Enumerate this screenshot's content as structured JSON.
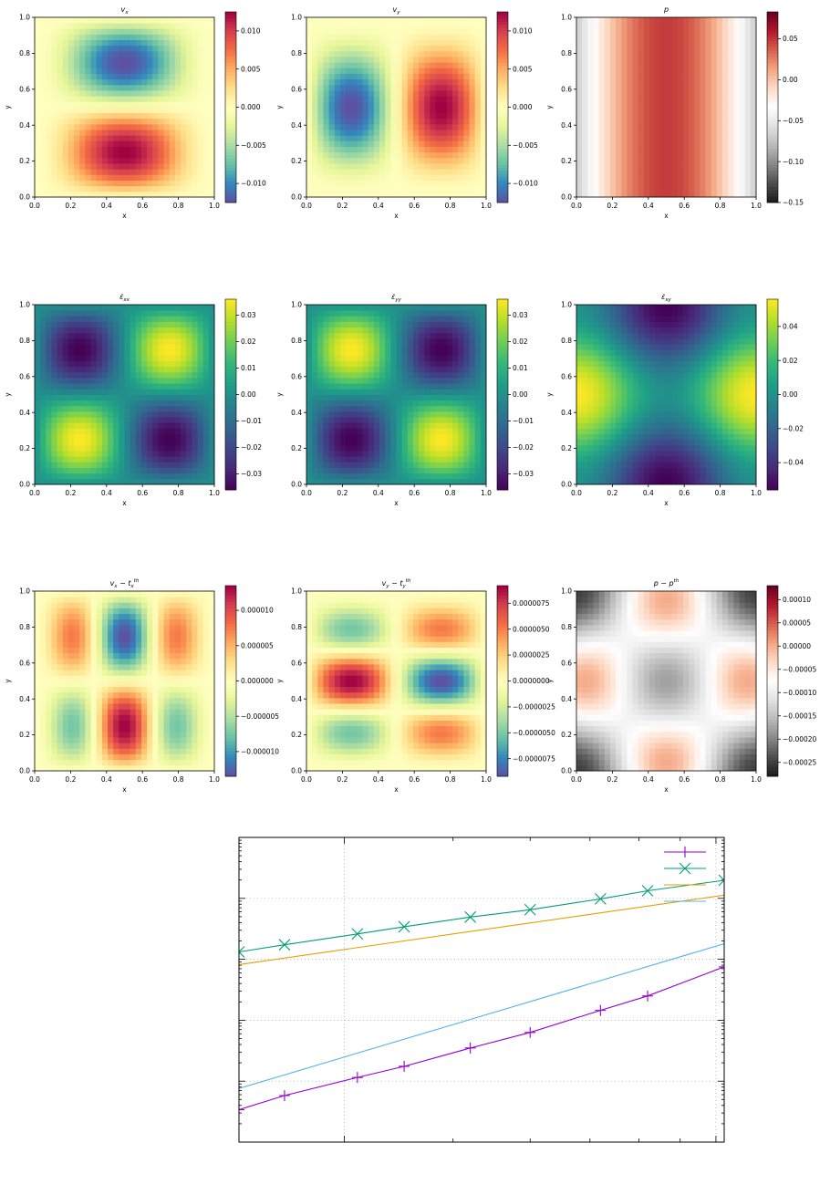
{
  "colors": {
    "purple": "#9400d3",
    "green": "#009e73",
    "orange": "#e69f00",
    "blue": "#56b4e9",
    "grid": "#a0a0a0"
  },
  "chart_data": [
    {
      "type": "heatmap",
      "field": "vx_spectral",
      "title_base": "v",
      "title_sub": "x",
      "xlabel": "x",
      "ylabel": "y",
      "xlim": [
        0,
        1
      ],
      "ylim": [
        0,
        1
      ],
      "x_ticks": [
        "0.0",
        "0.2",
        "0.4",
        "0.6",
        "0.8",
        "1.0"
      ],
      "y_ticks": [
        "0.0",
        "0.2",
        "0.4",
        "0.6",
        "0.8",
        "1.0"
      ],
      "colorbar": {
        "colormap": "Spectral_r",
        "range": [
          -0.0125,
          0.0125
        ],
        "ticks": [
          {
            "value": 0.01,
            "label": "0.010"
          },
          {
            "value": 0.005,
            "label": "0.005"
          },
          {
            "value": 0.0,
            "label": "0.000"
          },
          {
            "value": -0.005,
            "label": "−0.005"
          },
          {
            "value": -0.01,
            "label": "−0.010"
          }
        ]
      }
    },
    {
      "type": "heatmap",
      "field": "vy_spectral",
      "title_base": "v",
      "title_sub": "y",
      "xlabel": "x",
      "ylabel": "y",
      "xlim": [
        0,
        1
      ],
      "ylim": [
        0,
        1
      ],
      "x_ticks": [
        "0.0",
        "0.2",
        "0.4",
        "0.6",
        "0.8",
        "1.0"
      ],
      "y_ticks": [
        "0.0",
        "0.2",
        "0.4",
        "0.6",
        "0.8",
        "1.0"
      ],
      "colorbar": {
        "colormap": "Spectral_r",
        "range": [
          -0.0125,
          0.0125
        ],
        "ticks": [
          {
            "value": 0.01,
            "label": "0.010"
          },
          {
            "value": 0.005,
            "label": "0.005"
          },
          {
            "value": 0.0,
            "label": "0.000"
          },
          {
            "value": -0.005,
            "label": "−0.005"
          },
          {
            "value": -0.01,
            "label": "−0.010"
          }
        ]
      }
    },
    {
      "type": "heatmap",
      "field": "p_rdgy",
      "title_base": "p",
      "title_sub": "",
      "xlabel": "x",
      "ylabel": "y",
      "xlim": [
        0,
        1
      ],
      "ylim": [
        0,
        1
      ],
      "x_ticks": [
        "0.0",
        "0.2",
        "0.4",
        "0.6",
        "0.8",
        "1.0"
      ],
      "y_ticks": [
        "0.0",
        "0.2",
        "0.4",
        "0.6",
        "0.8",
        "1.0"
      ],
      "colorbar": {
        "colormap": "RdGy_r",
        "range": [
          -0.15,
          0.083
        ],
        "ticks": [
          {
            "value": 0.05,
            "label": "0.05"
          },
          {
            "value": 0.0,
            "label": "0.00"
          },
          {
            "value": -0.05,
            "label": "−0.05"
          },
          {
            "value": -0.1,
            "label": "−0.10"
          },
          {
            "value": -0.15,
            "label": "−0.15"
          }
        ]
      }
    },
    {
      "type": "heatmap",
      "field": "exx_viridis",
      "title_base": "ε̇",
      "title_sub": "xx",
      "xlabel": "x",
      "ylabel": "y",
      "xlim": [
        0,
        1
      ],
      "ylim": [
        0,
        1
      ],
      "x_ticks": [
        "0.0",
        "0.2",
        "0.4",
        "0.6",
        "0.8",
        "1.0"
      ],
      "y_ticks": [
        "0.0",
        "0.2",
        "0.4",
        "0.6",
        "0.8",
        "1.0"
      ],
      "colorbar": {
        "colormap": "viridis",
        "range": [
          -0.036,
          0.036
        ],
        "ticks": [
          {
            "value": 0.03,
            "label": "0.03"
          },
          {
            "value": 0.02,
            "label": "0.02"
          },
          {
            "value": 0.01,
            "label": "0.01"
          },
          {
            "value": 0.0,
            "label": "0.00"
          },
          {
            "value": -0.01,
            "label": "−0.01"
          },
          {
            "value": -0.02,
            "label": "−0.02"
          },
          {
            "value": -0.03,
            "label": "−0.03"
          }
        ]
      }
    },
    {
      "type": "heatmap",
      "field": "eyy_viridis",
      "title_base": "ε̇",
      "title_sub": "yy",
      "xlabel": "x",
      "ylabel": "y",
      "xlim": [
        0,
        1
      ],
      "ylim": [
        0,
        1
      ],
      "x_ticks": [
        "0.0",
        "0.2",
        "0.4",
        "0.6",
        "0.8",
        "1.0"
      ],
      "y_ticks": [
        "0.0",
        "0.2",
        "0.4",
        "0.6",
        "0.8",
        "1.0"
      ],
      "colorbar": {
        "colormap": "viridis",
        "range": [
          -0.036,
          0.036
        ],
        "ticks": [
          {
            "value": 0.03,
            "label": "0.03"
          },
          {
            "value": 0.02,
            "label": "0.02"
          },
          {
            "value": 0.01,
            "label": "0.01"
          },
          {
            "value": 0.0,
            "label": "0.00"
          },
          {
            "value": -0.01,
            "label": "−0.01"
          },
          {
            "value": -0.02,
            "label": "−0.02"
          },
          {
            "value": -0.03,
            "label": "−0.03"
          }
        ]
      }
    },
    {
      "type": "heatmap",
      "field": "exy_viridis",
      "title_base": "ε̇",
      "title_sub": "xy",
      "xlabel": "x",
      "ylabel": "y",
      "xlim": [
        0,
        1
      ],
      "ylim": [
        0,
        1
      ],
      "x_ticks": [
        "0.0",
        "0.2",
        "0.4",
        "0.6",
        "0.8",
        "1.0"
      ],
      "y_ticks": [
        "0.0",
        "0.2",
        "0.4",
        "0.6",
        "0.8",
        "1.0"
      ],
      "colorbar": {
        "colormap": "viridis",
        "range": [
          -0.056,
          0.056
        ],
        "ticks": [
          {
            "value": 0.04,
            "label": "0.04"
          },
          {
            "value": 0.02,
            "label": "0.02"
          },
          {
            "value": 0.0,
            "label": "0.00"
          },
          {
            "value": -0.02,
            "label": "−0.02"
          },
          {
            "value": -0.04,
            "label": "−0.04"
          }
        ]
      }
    },
    {
      "type": "heatmap",
      "field": "dvx_spectral",
      "title_base": "v",
      "title_sub": "x",
      "title_minus": " − t",
      "title_sub2": "x",
      "title_sup2": "th",
      "xlabel": "x",
      "ylabel": "y",
      "xlim": [
        0,
        1
      ],
      "ylim": [
        0,
        1
      ],
      "x_ticks": [
        "0.0",
        "0.2",
        "0.4",
        "0.6",
        "0.8",
        "1.0"
      ],
      "y_ticks": [
        "0.0",
        "0.2",
        "0.4",
        "0.6",
        "0.8",
        "1.0"
      ],
      "colorbar": {
        "colormap": "Spectral_r",
        "range": [
          -1.35e-05,
          1.35e-05
        ],
        "ticks": [
          {
            "value": 1e-05,
            "label": "0.000010"
          },
          {
            "value": 5e-06,
            "label": "0.000005"
          },
          {
            "value": 0.0,
            "label": "0.000000"
          },
          {
            "value": -5e-06,
            "label": "−0.000005"
          },
          {
            "value": -1e-05,
            "label": "−0.000010"
          }
        ]
      }
    },
    {
      "type": "heatmap",
      "field": "dvy_spectral",
      "title_base": "v",
      "title_sub": "y",
      "title_minus": " − t",
      "title_sub2": "y",
      "title_sup2": "th",
      "xlabel": "x",
      "ylabel": "y",
      "xlim": [
        0,
        1
      ],
      "ylim": [
        0,
        1
      ],
      "x_ticks": [
        "0.0",
        "0.2",
        "0.4",
        "0.6",
        "0.8",
        "1.0"
      ],
      "y_ticks": [
        "0.0",
        "0.2",
        "0.4",
        "0.6",
        "0.8",
        "1.0"
      ],
      "colorbar": {
        "colormap": "Spectral_r",
        "range": [
          -9.2e-06,
          9.2e-06
        ],
        "ticks": [
          {
            "value": 7.5e-06,
            "label": "0.0000075"
          },
          {
            "value": 5e-06,
            "label": "0.0000050"
          },
          {
            "value": 2.5e-06,
            "label": "0.0000025"
          },
          {
            "value": 0.0,
            "label": "0.0000000"
          },
          {
            "value": -2.5e-06,
            "label": "−0.0000025"
          },
          {
            "value": -5e-06,
            "label": "−0.0000050"
          },
          {
            "value": -7.5e-06,
            "label": "−0.0000075"
          }
        ]
      }
    },
    {
      "type": "heatmap",
      "field": "dp_rdgy",
      "title_base": "p",
      "title_sub": "",
      "title_minus": " − p",
      "title_sub2": "",
      "title_sup2": "th",
      "xlabel": "x",
      "ylabel": "y",
      "xlim": [
        0,
        1
      ],
      "ylim": [
        0,
        1
      ],
      "x_ticks": [
        "0.0",
        "0.2",
        "0.4",
        "0.6",
        "0.8",
        "1.0"
      ],
      "y_ticks": [
        "0.0",
        "0.2",
        "0.4",
        "0.6",
        "0.8",
        "1.0"
      ],
      "colorbar": {
        "colormap": "RdGy_r",
        "range": [
          -0.00028,
          0.00013
        ],
        "ticks": [
          {
            "value": 0.0001,
            "label": "0.00010"
          },
          {
            "value": 5e-05,
            "label": "0.00005"
          },
          {
            "value": 0.0,
            "label": "0.00000"
          },
          {
            "value": -5e-05,
            "label": "−0.00005"
          },
          {
            "value": -0.0001,
            "label": "−0.00010"
          },
          {
            "value": -0.00015,
            "label": "−0.00015"
          },
          {
            "value": -0.0002,
            "label": "−0.00020"
          },
          {
            "value": -0.00025,
            "label": "−0.00025"
          }
        ]
      }
    },
    {
      "type": "line",
      "title": "",
      "xlabel": "",
      "ylabel": "",
      "xscale": "log",
      "yscale": "log",
      "xlim": [
        0.0135,
        0.0825
      ],
      "ylim": [
        1e-08,
        0.001
      ],
      "legend": "top-right",
      "series": [
        {
          "name": "",
          "color": "#9400d3",
          "marker": "plus",
          "line": true,
          "x": [
            0.0135,
            0.016,
            0.021,
            0.025,
            0.032,
            0.04,
            0.052,
            0.062,
            0.0825
          ],
          "y": [
            3.4e-08,
            5.8e-08,
            1.15e-07,
            1.75e-07,
            3.5e-07,
            6.3e-07,
            1.45e-06,
            2.5e-06,
            7.5e-06
          ]
        },
        {
          "name": "",
          "color": "#009e73",
          "marker": "x",
          "line": true,
          "x": [
            0.0135,
            0.016,
            0.021,
            0.025,
            0.032,
            0.04,
            0.052,
            0.062,
            0.0825
          ],
          "y": [
            1.32e-05,
            1.73e-05,
            2.61e-05,
            3.42e-05,
            4.93e-05,
            6.5e-05,
            9.8e-05,
            0.000133,
            0.000198
          ]
        },
        {
          "name": "",
          "color": "#e69f00",
          "marker": "none",
          "line": true,
          "x": [
            0.0135,
            0.0825
          ],
          "y": [
            8.2e-06,
            0.000113
          ]
        },
        {
          "name": "",
          "color": "#56b4e9",
          "marker": "none",
          "line": true,
          "x": [
            0.0135,
            0.0825
          ],
          "y": [
            7.6e-08,
            1.8e-05
          ]
        }
      ]
    }
  ]
}
